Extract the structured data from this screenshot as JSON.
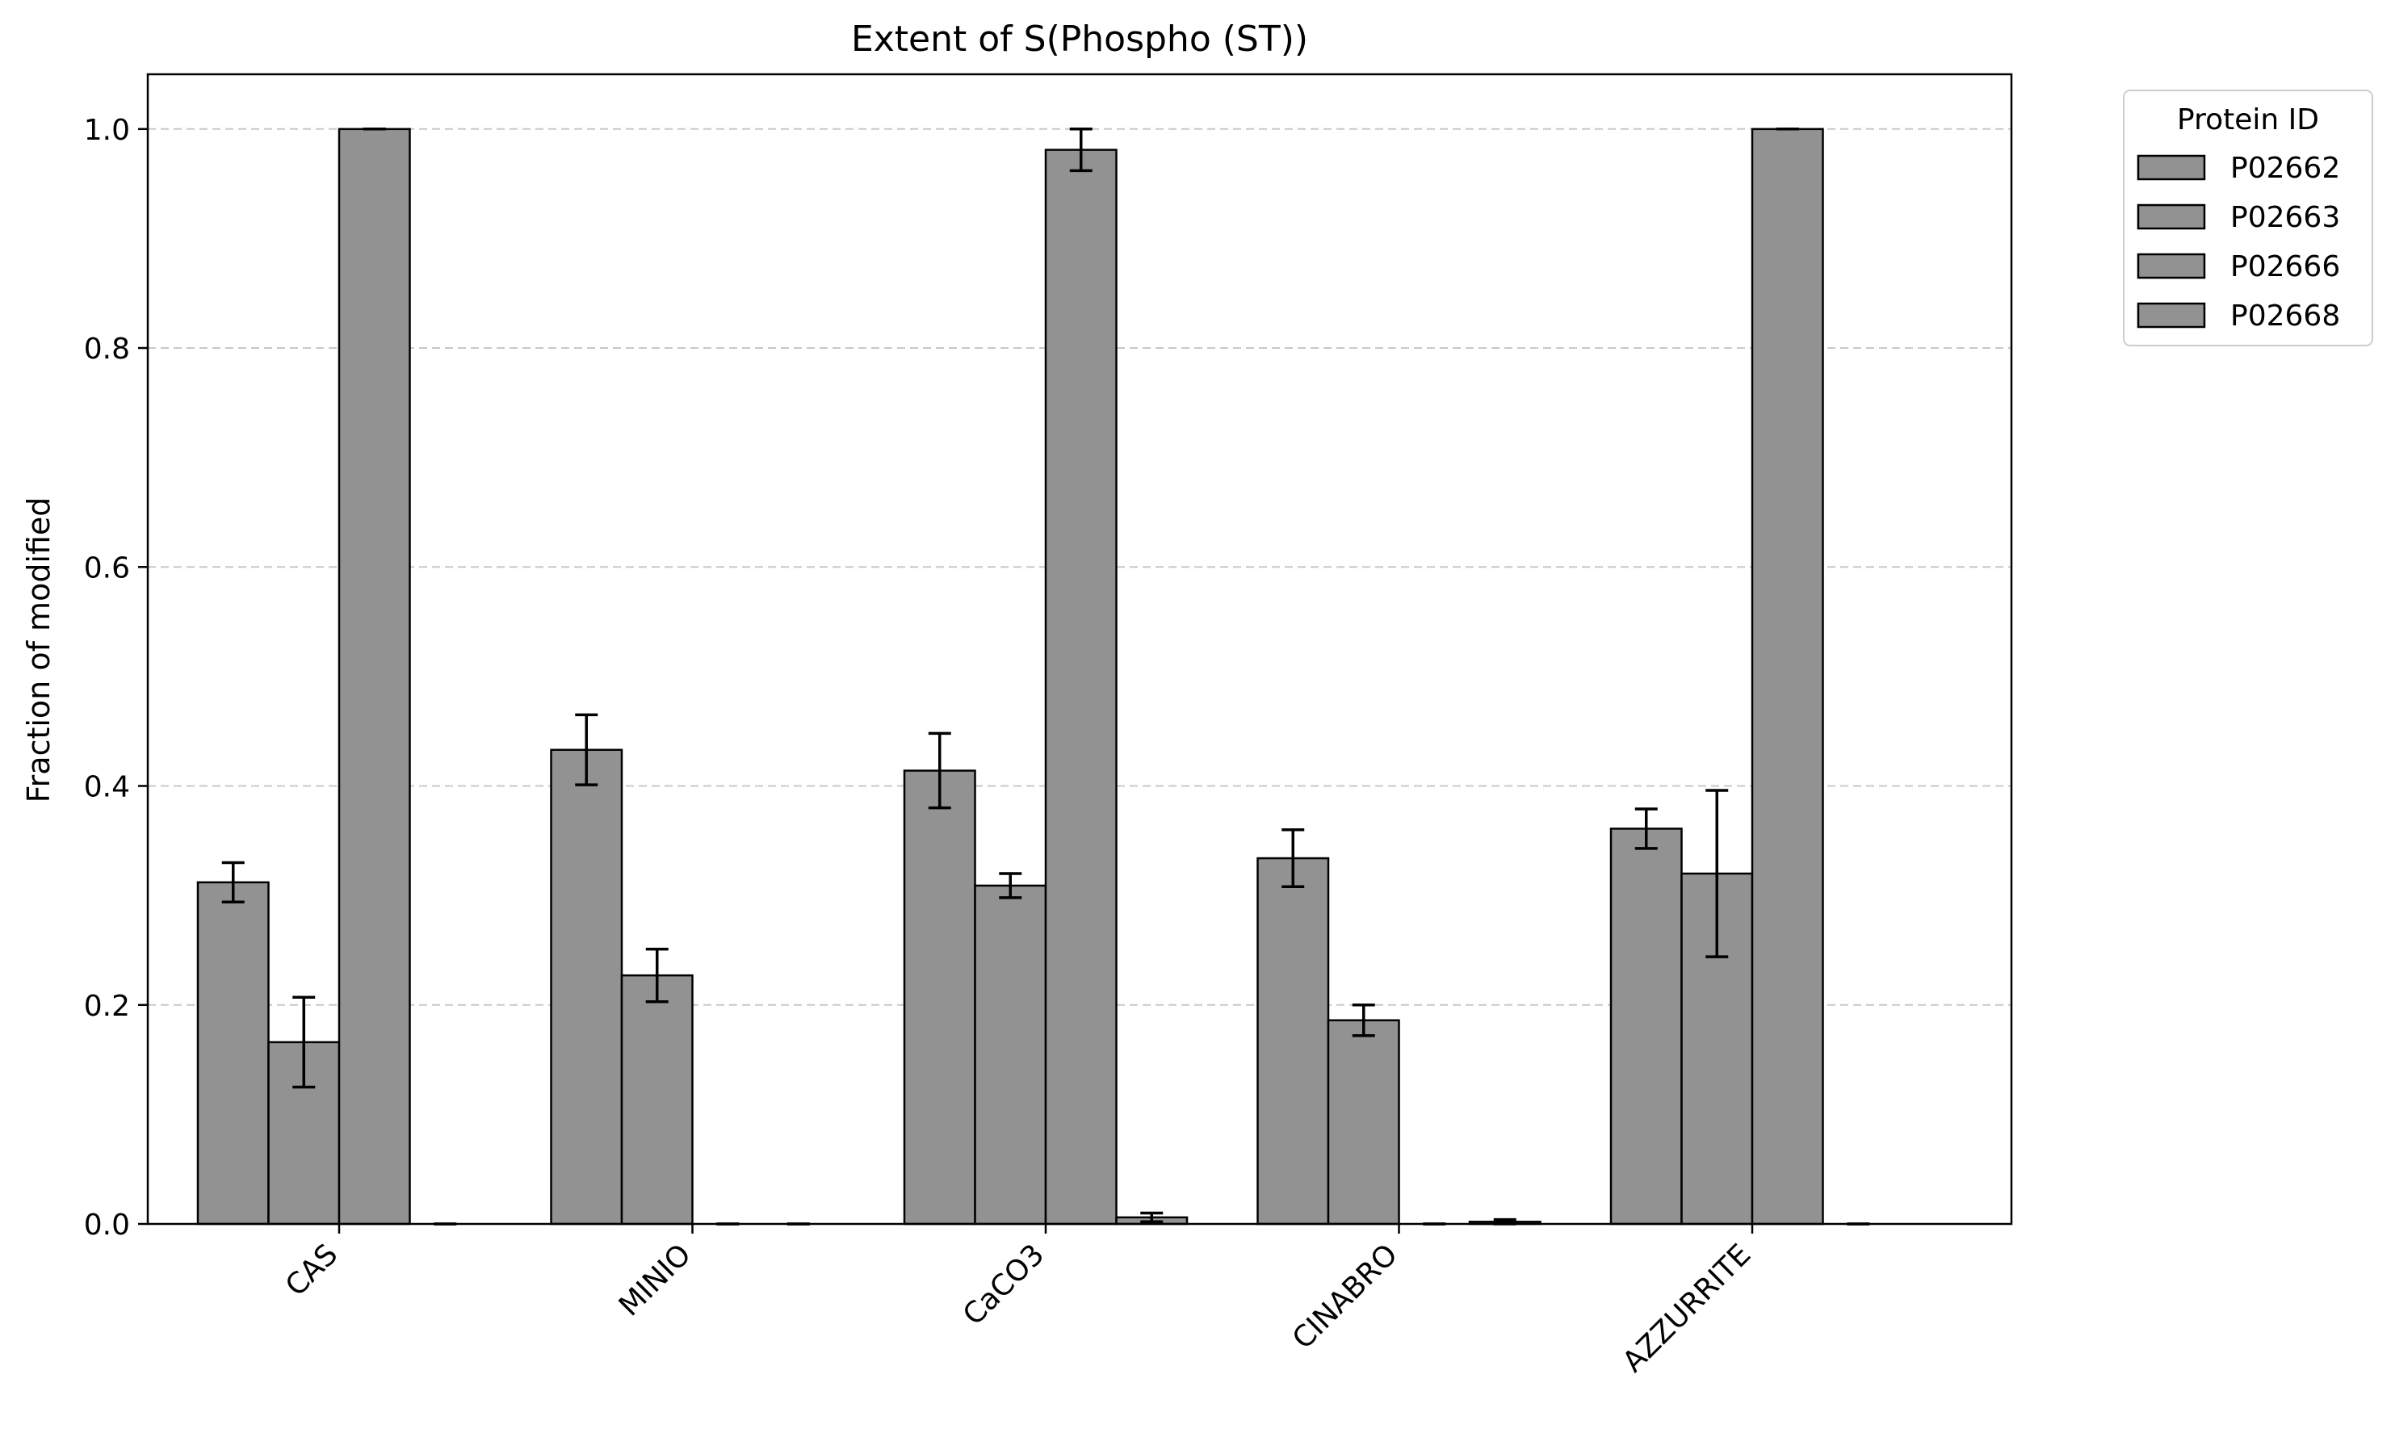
{
  "chart_data": {
    "type": "bar",
    "title": "Extent of S(Phospho (ST))",
    "xlabel": "",
    "ylabel": "Fraction of modified",
    "ylim": [
      0,
      1.05
    ],
    "yticks": [
      "0.0",
      "0.2",
      "0.4",
      "0.6",
      "0.8",
      "1.0"
    ],
    "grid": "y-dashed",
    "legend": {
      "title": "Protein ID",
      "placement": "outside-top-right"
    },
    "bar_color": "#929292",
    "edge_color": "#000000",
    "categories": [
      "CAS",
      "MINIO",
      "CaCO3",
      "CINABRO",
      "AZZURRITE"
    ],
    "series": [
      {
        "name": "P02662",
        "values": [
          0.312,
          0.433,
          0.414,
          0.334,
          0.361
        ],
        "errors": [
          0.018,
          0.032,
          0.034,
          0.026,
          0.018
        ]
      },
      {
        "name": "P02663",
        "values": [
          0.166,
          0.227,
          0.309,
          0.186,
          0.32
        ],
        "errors": [
          0.041,
          0.024,
          0.011,
          0.014,
          0.076
        ]
      },
      {
        "name": "P02666",
        "values": [
          1.0,
          0.0,
          0.981,
          0.0,
          1.0
        ],
        "errors": [
          0.0,
          0.0,
          0.019,
          0.0,
          0.0
        ]
      },
      {
        "name": "P02668",
        "values": [
          0.0,
          0.0,
          0.006,
          0.002,
          0.0
        ],
        "errors": [
          0.0,
          0.0,
          0.004,
          0.002,
          0.0
        ]
      }
    ]
  }
}
